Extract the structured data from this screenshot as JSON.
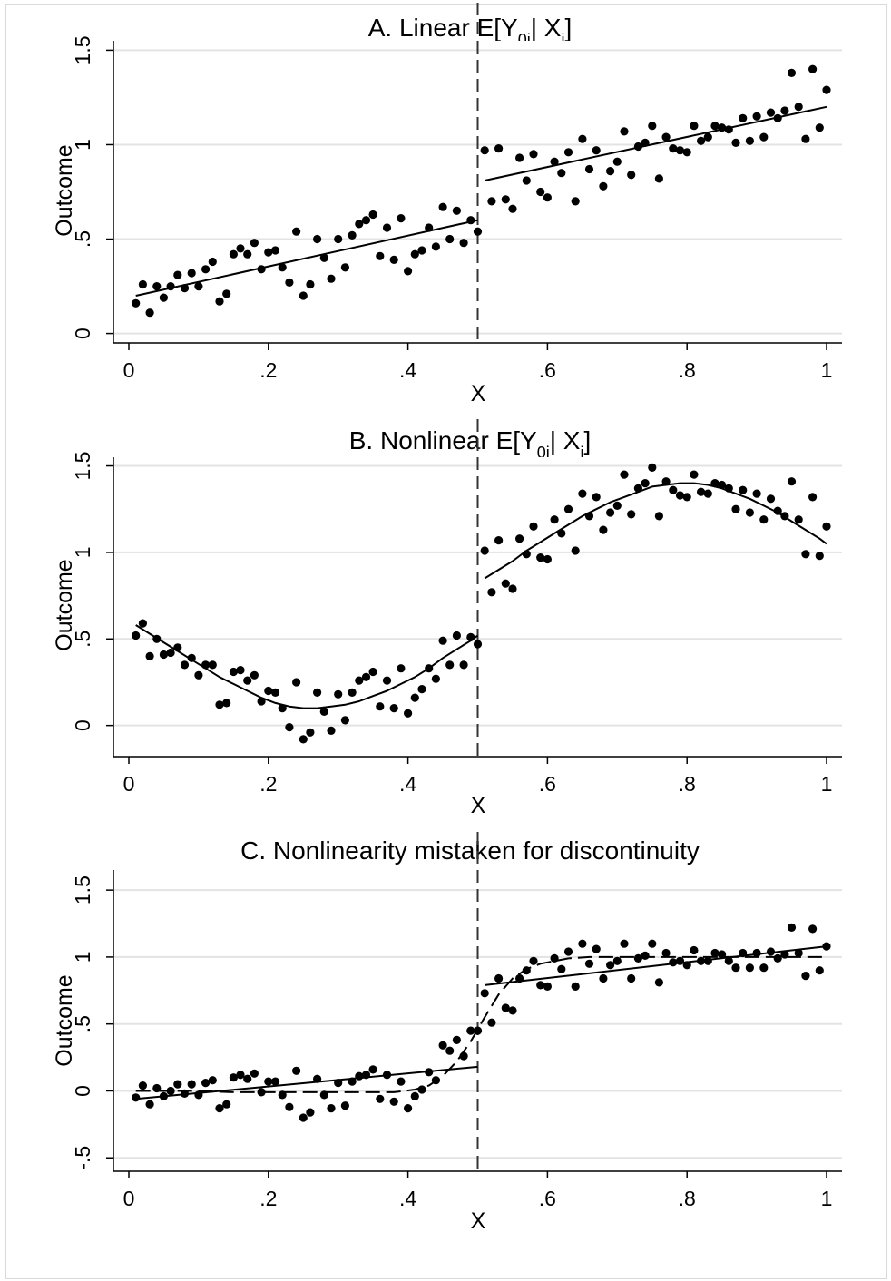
{
  "chart_data": [
    {
      "type": "scatter",
      "title_main": "A. Linear E[Y",
      "title_sub": "0i",
      "title_mid": "| X",
      "title_sub2": "i",
      "title_end": "]",
      "xlabel": "X",
      "ylabel": "Outcome",
      "xlim": [
        0,
        1
      ],
      "ylim": [
        -0.05,
        1.55
      ],
      "xticks": [
        0,
        0.2,
        0.4,
        0.6,
        0.8,
        1
      ],
      "xtick_labels": [
        "0",
        ".2",
        ".4",
        ".6",
        ".8",
        "1"
      ],
      "yticks": [
        0,
        0.5,
        1,
        1.5
      ],
      "ytick_labels": [
        "0",
        ".5",
        "1",
        "1.5"
      ],
      "cutoff": 0.5,
      "grid": true,
      "x": [
        0.01,
        0.02,
        0.03,
        0.04,
        0.05,
        0.06,
        0.07,
        0.08,
        0.09,
        0.1,
        0.11,
        0.12,
        0.13,
        0.14,
        0.15,
        0.16,
        0.17,
        0.18,
        0.19,
        0.2,
        0.21,
        0.22,
        0.23,
        0.24,
        0.25,
        0.26,
        0.27,
        0.28,
        0.29,
        0.3,
        0.31,
        0.32,
        0.33,
        0.34,
        0.35,
        0.36,
        0.37,
        0.38,
        0.39,
        0.4,
        0.41,
        0.42,
        0.43,
        0.44,
        0.45,
        0.46,
        0.47,
        0.48,
        0.49,
        0.5,
        0.51,
        0.52,
        0.53,
        0.54,
        0.55,
        0.56,
        0.57,
        0.58,
        0.59,
        0.6,
        0.61,
        0.62,
        0.63,
        0.64,
        0.65,
        0.66,
        0.67,
        0.68,
        0.69,
        0.7,
        0.71,
        0.72,
        0.73,
        0.74,
        0.75,
        0.76,
        0.77,
        0.78,
        0.79,
        0.8,
        0.81,
        0.82,
        0.83,
        0.84,
        0.85,
        0.86,
        0.87,
        0.88,
        0.89,
        0.9,
        0.91,
        0.92,
        0.93,
        0.94,
        0.95,
        0.96,
        0.97,
        0.98,
        0.99,
        1.0
      ],
      "y": [
        0.16,
        0.26,
        0.11,
        0.25,
        0.19,
        0.25,
        0.31,
        0.24,
        0.32,
        0.25,
        0.34,
        0.38,
        0.17,
        0.21,
        0.42,
        0.45,
        0.42,
        0.48,
        0.34,
        0.43,
        0.44,
        0.35,
        0.27,
        0.54,
        0.2,
        0.26,
        0.5,
        0.4,
        0.29,
        0.5,
        0.35,
        0.52,
        0.58,
        0.6,
        0.63,
        0.41,
        0.56,
        0.39,
        0.61,
        0.33,
        0.42,
        0.44,
        0.56,
        0.46,
        0.67,
        0.5,
        0.65,
        0.48,
        0.6,
        0.54,
        0.97,
        0.7,
        0.98,
        0.71,
        0.66,
        0.93,
        0.81,
        0.95,
        0.75,
        0.72,
        0.91,
        0.85,
        0.96,
        0.7,
        1.03,
        0.87,
        0.97,
        0.78,
        0.86,
        0.91,
        1.07,
        0.84,
        0.99,
        1.01,
        1.1,
        0.82,
        1.04,
        0.98,
        0.97,
        0.96,
        1.1,
        1.02,
        1.04,
        1.1,
        1.09,
        1.08,
        1.01,
        1.14,
        1.02,
        1.15,
        1.04,
        1.17,
        1.14,
        1.18,
        1.38,
        1.2,
        1.03,
        1.4,
        1.09,
        1.29
      ],
      "fits": [
        {
          "style": "solid",
          "x": [
            0.01,
            0.5
          ],
          "y": [
            0.2,
            0.6
          ]
        },
        {
          "style": "solid",
          "x": [
            0.51,
            1.0
          ],
          "y": [
            0.81,
            1.2
          ]
        }
      ]
    },
    {
      "type": "scatter",
      "title_main": "B. Nonlinear E[Y",
      "title_sub": "0i",
      "title_mid": "| X",
      "title_sub2": "i",
      "title_end": "]",
      "xlabel": "X",
      "ylabel": "Outcome",
      "xlim": [
        0,
        1
      ],
      "ylim": [
        -0.18,
        1.55
      ],
      "xticks": [
        0,
        0.2,
        0.4,
        0.6,
        0.8,
        1
      ],
      "xtick_labels": [
        "0",
        ".2",
        ".4",
        ".6",
        ".8",
        "1"
      ],
      "yticks": [
        0,
        0.5,
        1,
        1.5
      ],
      "ytick_labels": [
        "0",
        ".5",
        "1",
        "1.5"
      ],
      "cutoff": 0.5,
      "grid": true,
      "x": [
        0.01,
        0.02,
        0.03,
        0.04,
        0.05,
        0.06,
        0.07,
        0.08,
        0.09,
        0.1,
        0.11,
        0.12,
        0.13,
        0.14,
        0.15,
        0.16,
        0.17,
        0.18,
        0.19,
        0.2,
        0.21,
        0.22,
        0.23,
        0.24,
        0.25,
        0.26,
        0.27,
        0.28,
        0.29,
        0.3,
        0.31,
        0.32,
        0.33,
        0.34,
        0.35,
        0.36,
        0.37,
        0.38,
        0.39,
        0.4,
        0.41,
        0.42,
        0.43,
        0.44,
        0.45,
        0.46,
        0.47,
        0.48,
        0.49,
        0.5,
        0.51,
        0.52,
        0.53,
        0.54,
        0.55,
        0.56,
        0.57,
        0.58,
        0.59,
        0.6,
        0.61,
        0.62,
        0.63,
        0.64,
        0.65,
        0.66,
        0.67,
        0.68,
        0.69,
        0.7,
        0.71,
        0.72,
        0.73,
        0.74,
        0.75,
        0.76,
        0.77,
        0.78,
        0.79,
        0.8,
        0.81,
        0.82,
        0.83,
        0.84,
        0.85,
        0.86,
        0.87,
        0.88,
        0.89,
        0.9,
        0.91,
        0.92,
        0.93,
        0.94,
        0.95,
        0.96,
        0.97,
        0.98,
        0.99,
        1.0
      ],
      "y": [
        0.52,
        0.59,
        0.4,
        0.5,
        0.41,
        0.42,
        0.45,
        0.35,
        0.39,
        0.29,
        0.35,
        0.35,
        0.12,
        0.13,
        0.31,
        0.32,
        0.26,
        0.29,
        0.14,
        0.2,
        0.19,
        0.1,
        -0.01,
        0.25,
        -0.08,
        -0.04,
        0.19,
        0.08,
        -0.03,
        0.18,
        0.03,
        0.19,
        0.26,
        0.28,
        0.31,
        0.11,
        0.26,
        0.1,
        0.33,
        0.07,
        0.16,
        0.21,
        0.33,
        0.27,
        0.49,
        0.35,
        0.52,
        0.35,
        0.51,
        0.47,
        1.01,
        0.77,
        1.07,
        0.82,
        0.79,
        1.08,
        0.99,
        1.15,
        0.97,
        0.96,
        1.19,
        1.11,
        1.25,
        1.01,
        1.34,
        1.21,
        1.32,
        1.13,
        1.23,
        1.27,
        1.45,
        1.22,
        1.37,
        1.4,
        1.49,
        1.21,
        1.41,
        1.36,
        1.33,
        1.32,
        1.45,
        1.35,
        1.34,
        1.4,
        1.39,
        1.37,
        1.25,
        1.36,
        1.23,
        1.34,
        1.19,
        1.31,
        1.24,
        1.21,
        1.41,
        1.19,
        0.99,
        1.32,
        0.98,
        1.15
      ],
      "fits": [
        {
          "style": "solid",
          "x": [
            0.01,
            0.03,
            0.05,
            0.07,
            0.09,
            0.11,
            0.13,
            0.15,
            0.17,
            0.19,
            0.21,
            0.23,
            0.25,
            0.27,
            0.29,
            0.31,
            0.33,
            0.35,
            0.37,
            0.39,
            0.41,
            0.43,
            0.45,
            0.47,
            0.49,
            0.5
          ],
          "y": [
            0.58,
            0.53,
            0.48,
            0.43,
            0.38,
            0.33,
            0.28,
            0.24,
            0.2,
            0.16,
            0.13,
            0.11,
            0.1,
            0.1,
            0.11,
            0.12,
            0.14,
            0.17,
            0.2,
            0.24,
            0.28,
            0.33,
            0.39,
            0.44,
            0.49,
            0.52
          ]
        },
        {
          "style": "solid",
          "x": [
            0.51,
            0.53,
            0.55,
            0.57,
            0.59,
            0.61,
            0.63,
            0.65,
            0.67,
            0.69,
            0.71,
            0.73,
            0.75,
            0.77,
            0.79,
            0.81,
            0.83,
            0.85,
            0.87,
            0.89,
            0.91,
            0.93,
            0.95,
            0.97,
            0.99,
            1.0
          ],
          "y": [
            0.85,
            0.9,
            0.95,
            1.01,
            1.06,
            1.11,
            1.16,
            1.21,
            1.25,
            1.29,
            1.32,
            1.35,
            1.38,
            1.39,
            1.4,
            1.4,
            1.39,
            1.37,
            1.34,
            1.31,
            1.27,
            1.23,
            1.18,
            1.13,
            1.08,
            1.05
          ]
        }
      ]
    },
    {
      "type": "scatter",
      "title_main": "C. Nonlinearity mistaken for discontinuity",
      "xlabel": "X",
      "ylabel": "Outcome",
      "xlim": [
        0,
        1
      ],
      "ylim": [
        -0.6,
        1.65
      ],
      "xticks": [
        0,
        0.2,
        0.4,
        0.6,
        0.8,
        1
      ],
      "xtick_labels": [
        "0",
        ".2",
        ".4",
        ".6",
        ".8",
        "1"
      ],
      "yticks": [
        -0.5,
        0,
        0.5,
        1,
        1.5
      ],
      "ytick_labels": [
        "-.5",
        "0",
        ".5",
        "1",
        "1.5"
      ],
      "cutoff": 0.5,
      "grid": true,
      "x": [
        0.01,
        0.02,
        0.03,
        0.04,
        0.05,
        0.06,
        0.07,
        0.08,
        0.09,
        0.1,
        0.11,
        0.12,
        0.13,
        0.14,
        0.15,
        0.16,
        0.17,
        0.18,
        0.19,
        0.2,
        0.21,
        0.22,
        0.23,
        0.24,
        0.25,
        0.26,
        0.27,
        0.28,
        0.29,
        0.3,
        0.31,
        0.32,
        0.33,
        0.34,
        0.35,
        0.36,
        0.37,
        0.38,
        0.39,
        0.4,
        0.41,
        0.42,
        0.43,
        0.44,
        0.45,
        0.46,
        0.47,
        0.48,
        0.49,
        0.5,
        0.51,
        0.52,
        0.53,
        0.54,
        0.55,
        0.56,
        0.57,
        0.58,
        0.59,
        0.6,
        0.61,
        0.62,
        0.63,
        0.64,
        0.65,
        0.66,
        0.67,
        0.68,
        0.69,
        0.7,
        0.71,
        0.72,
        0.73,
        0.74,
        0.75,
        0.76,
        0.77,
        0.78,
        0.79,
        0.8,
        0.81,
        0.82,
        0.83,
        0.84,
        0.85,
        0.86,
        0.87,
        0.88,
        0.89,
        0.9,
        0.91,
        0.92,
        0.93,
        0.94,
        0.95,
        0.96,
        0.97,
        0.98,
        0.99,
        1.0
      ],
      "y": [
        -0.05,
        0.04,
        -0.1,
        0.02,
        -0.04,
        0.0,
        0.05,
        -0.02,
        0.05,
        -0.03,
        0.06,
        0.08,
        -0.13,
        -0.1,
        0.1,
        0.12,
        0.09,
        0.13,
        -0.01,
        0.07,
        0.07,
        -0.03,
        -0.12,
        0.15,
        -0.2,
        -0.16,
        0.09,
        -0.03,
        -0.13,
        0.06,
        -0.11,
        0.07,
        0.11,
        0.12,
        0.16,
        -0.06,
        0.12,
        -0.08,
        0.07,
        -0.13,
        -0.04,
        0.01,
        0.14,
        0.08,
        0.34,
        0.3,
        0.38,
        0.26,
        0.45,
        0.45,
        0.73,
        0.51,
        0.84,
        0.62,
        0.6,
        0.84,
        0.9,
        0.97,
        0.79,
        0.78,
        0.99,
        0.91,
        1.04,
        0.78,
        1.1,
        0.95,
        1.06,
        0.84,
        0.94,
        0.97,
        1.1,
        0.84,
        0.99,
        1.01,
        1.1,
        0.81,
        1.03,
        0.96,
        0.97,
        0.94,
        1.05,
        0.97,
        0.97,
        1.03,
        1.02,
        0.97,
        0.92,
        1.03,
        0.92,
        1.03,
        0.92,
        1.04,
        0.99,
        1.02,
        1.22,
        1.03,
        0.86,
        1.21,
        0.9,
        1.08
      ],
      "fits": [
        {
          "style": "solid",
          "x": [
            0.01,
            0.5
          ],
          "y": [
            -0.06,
            0.18
          ]
        },
        {
          "style": "solid",
          "x": [
            0.51,
            1.0
          ],
          "y": [
            0.79,
            1.08
          ]
        },
        {
          "style": "dashed",
          "x": [
            0.01,
            0.05,
            0.1,
            0.15,
            0.2,
            0.25,
            0.3,
            0.35,
            0.38,
            0.41,
            0.43,
            0.45,
            0.47,
            0.49,
            0.51,
            0.53,
            0.55,
            0.57,
            0.59,
            0.61,
            0.63,
            0.66,
            0.7,
            0.75,
            0.8,
            0.9,
            1.0
          ],
          "y": [
            0.0,
            0.0,
            0.0,
            -0.01,
            -0.01,
            -0.01,
            -0.01,
            -0.01,
            -0.01,
            0.01,
            0.04,
            0.11,
            0.22,
            0.37,
            0.55,
            0.72,
            0.84,
            0.91,
            0.95,
            0.97,
            0.99,
            1.0,
            1.0,
            1.0,
            1.0,
            1.0,
            1.0
          ]
        }
      ]
    }
  ]
}
